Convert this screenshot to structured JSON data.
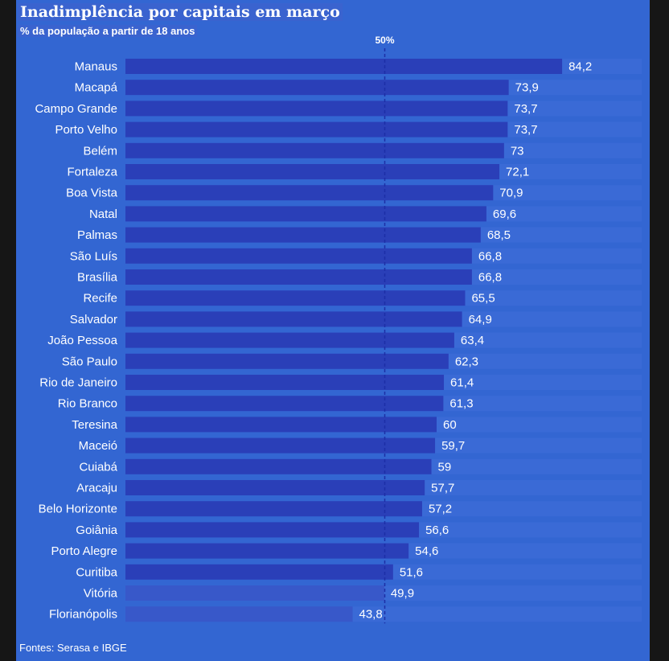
{
  "header": {
    "title": "Inadimplência por capitais em março",
    "subtitle": "% da população a partir de 18 anos"
  },
  "footer": {
    "source": "Fontes: Serasa e IBGE"
  },
  "chart_data": {
    "type": "bar",
    "orientation": "horizontal",
    "title": "Inadimplência por capitais em março",
    "subtitle": "% da população a partir de 18 anos",
    "xlim": [
      0,
      100
    ],
    "reference_line": {
      "value": 50,
      "label": "50%"
    },
    "grid": false,
    "colors": {
      "bar": "#2a3fb8",
      "bar_light": "#3858c9",
      "background": "#3366d2",
      "track": "#3a6ad6"
    },
    "categories": [
      "Manaus",
      "Macapá",
      "Campo Grande",
      "Porto Velho",
      "Belém",
      "Fortaleza",
      "Boa Vista",
      "Natal",
      "Palmas",
      "São Luís",
      "Brasília",
      "Recife",
      "Salvador",
      "João Pessoa",
      "São Paulo",
      "Rio de Janeiro",
      "Rio Branco",
      "Teresina",
      "Maceió",
      "Cuiabá",
      "Aracaju",
      "Belo Horizonte",
      "Goiânia",
      "Porto Alegre",
      "Curitiba",
      "Vitória",
      "Florianópolis"
    ],
    "values": [
      84.2,
      73.9,
      73.7,
      73.7,
      73,
      72.1,
      70.9,
      69.6,
      68.5,
      66.8,
      66.8,
      65.5,
      64.9,
      63.4,
      62.3,
      61.4,
      61.3,
      60,
      59.7,
      59,
      57.7,
      57.2,
      56.6,
      54.6,
      51.6,
      49.9,
      43.8
    ],
    "value_labels": [
      "84,2",
      "73,9",
      "73,7",
      "73,7",
      "73",
      "72,1",
      "70,9",
      "69,6",
      "68,5",
      "66,8",
      "66,8",
      "65,5",
      "64,9",
      "63,4",
      "62,3",
      "61,4",
      "61,3",
      "60",
      "59,7",
      "59",
      "57,7",
      "57,2",
      "56,6",
      "54,6",
      "51,6",
      "49,9",
      "43,8"
    ]
  }
}
